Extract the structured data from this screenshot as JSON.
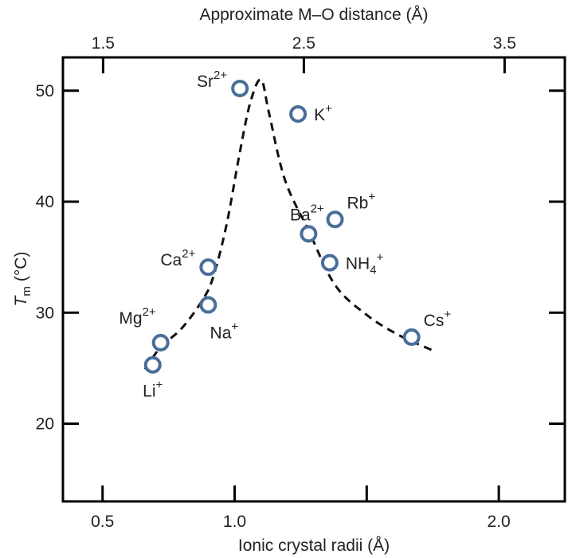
{
  "chart_data": {
    "type": "scatter",
    "title": "",
    "xlabel": "Ionic crystal radii (Å)",
    "x2label": "Approximate M–O distance (Å)",
    "ylabel_main": "T",
    "ylabel_sub": "m",
    "ylabel_unit": "(°C)",
    "xlim": [
      0.35,
      2.25
    ],
    "x2lim": [
      1.3,
      3.8
    ],
    "ylim": [
      13,
      53
    ],
    "x_ticks": [
      0.5,
      1.0,
      1.5,
      2.0
    ],
    "x_tick_labels": [
      "0.5",
      "1.0",
      "",
      "2.0"
    ],
    "x2_ticks": [
      1.5,
      2.5,
      3.5
    ],
    "x2_tick_labels": [
      "1.5",
      "2.5",
      "3.5"
    ],
    "y_ticks": [
      20,
      30,
      40,
      50
    ],
    "y_tick_labels": [
      "20",
      "30",
      "40",
      "50"
    ],
    "marker_color": "#4a6e9a",
    "curve_color": "#111111",
    "grid": false,
    "points": [
      {
        "ion": "Li",
        "sup": "+",
        "sub": "",
        "x": 0.69,
        "y": 25.3,
        "label_pos": "below"
      },
      {
        "ion": "Mg",
        "sup": "2+",
        "sub": "",
        "x": 0.72,
        "y": 27.3,
        "label_pos": "above"
      },
      {
        "ion": "Na",
        "sup": "+",
        "sub": "",
        "x": 0.9,
        "y": 30.7,
        "label_pos": "below-right"
      },
      {
        "ion": "Ca",
        "sup": "2+",
        "sub": "",
        "x": 0.9,
        "y": 34.1,
        "label_pos": "left"
      },
      {
        "ion": "Sr",
        "sup": "2+",
        "sub": "",
        "x": 1.02,
        "y": 50.2,
        "label_pos": "left"
      },
      {
        "ion": "K",
        "sup": "+",
        "sub": "",
        "x": 1.24,
        "y": 47.9,
        "label_pos": "right"
      },
      {
        "ion": "Ba",
        "sup": "2+",
        "sub": "",
        "x": 1.28,
        "y": 37.1,
        "label_pos": "above-left"
      },
      {
        "ion": "Rb",
        "sup": "+",
        "sub": "",
        "x": 1.38,
        "y": 38.4,
        "label_pos": "above-right"
      },
      {
        "ion": "NH",
        "sup": "+",
        "sub": "4",
        "x": 1.36,
        "y": 34.5,
        "label_pos": "right"
      },
      {
        "ion": "Cs",
        "sup": "+",
        "sub": "",
        "x": 1.67,
        "y": 27.8,
        "label_pos": "above-right"
      }
    ],
    "trend_curve": [
      [
        0.66,
        24.9
      ],
      [
        0.72,
        26.9
      ],
      [
        0.8,
        28.6
      ],
      [
        0.88,
        31.2
      ],
      [
        0.92,
        33.3
      ],
      [
        0.97,
        38.0
      ],
      [
        1.02,
        44.5
      ],
      [
        1.06,
        49.0
      ],
      [
        1.1,
        51.0
      ],
      [
        1.13,
        48.0
      ],
      [
        1.19,
        42.0
      ],
      [
        1.28,
        37.4
      ],
      [
        1.38,
        32.5
      ],
      [
        1.5,
        29.8
      ],
      [
        1.62,
        28.0
      ],
      [
        1.75,
        26.6
      ]
    ]
  }
}
